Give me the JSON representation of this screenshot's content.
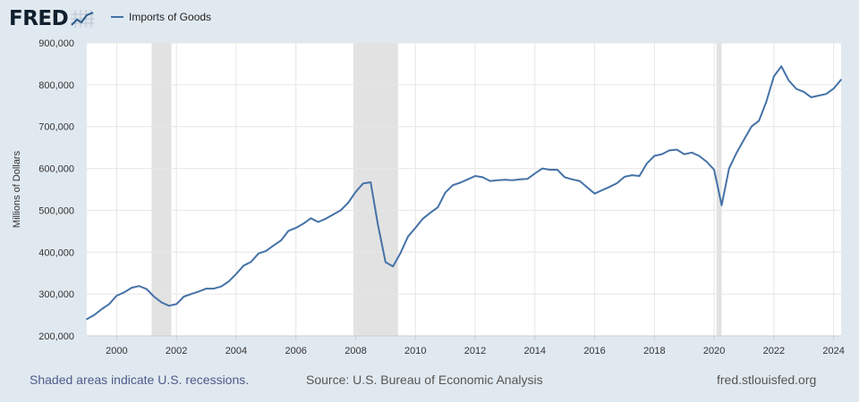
{
  "header": {
    "logo_text": "FRED",
    "logo_icon": "line-graph-icon",
    "legend_label": "Imports of Goods",
    "series_color": "#4572a7"
  },
  "footer": {
    "recession_note": "Shaded areas indicate U.S. recessions.",
    "source": "Source: U.S. Bureau of Economic Analysis",
    "site": "fred.stlouisfed.org"
  },
  "chart_data": {
    "type": "line",
    "title": "",
    "xlabel": "",
    "ylabel": "Millions of Dollars",
    "ylim": [
      200000,
      900000
    ],
    "xlim": [
      1999.0,
      2024.25
    ],
    "y_ticks": [
      200000,
      300000,
      400000,
      500000,
      600000,
      700000,
      800000,
      900000
    ],
    "y_tick_labels": [
      "200,000",
      "300,000",
      "400,000",
      "500,000",
      "600,000",
      "700,000",
      "800,000",
      "900,000"
    ],
    "x_ticks": [
      2000,
      2002,
      2004,
      2006,
      2008,
      2010,
      2012,
      2014,
      2016,
      2018,
      2020,
      2022,
      2024
    ],
    "x_tick_labels": [
      "2000",
      "2002",
      "2004",
      "2006",
      "2008",
      "2010",
      "2012",
      "2014",
      "2016",
      "2018",
      "2020",
      "2022",
      "2024"
    ],
    "grid": true,
    "recessions": [
      [
        2001.17,
        2001.83
      ],
      [
        2007.92,
        2009.42
      ],
      [
        2020.08,
        2020.25
      ]
    ],
    "series": [
      {
        "name": "Imports of Goods",
        "color": "#4572a7",
        "points": [
          [
            1999.0,
            240000
          ],
          [
            1999.25,
            250000
          ],
          [
            1999.5,
            264000
          ],
          [
            1999.75,
            276000
          ],
          [
            2000.0,
            296000
          ],
          [
            2000.25,
            304000
          ],
          [
            2000.5,
            315000
          ],
          [
            2000.75,
            319000
          ],
          [
            2001.0,
            312000
          ],
          [
            2001.25,
            294000
          ],
          [
            2001.5,
            280000
          ],
          [
            2001.75,
            272000
          ],
          [
            2002.0,
            276000
          ],
          [
            2002.25,
            294000
          ],
          [
            2002.5,
            300000
          ],
          [
            2002.75,
            306000
          ],
          [
            2003.0,
            313000
          ],
          [
            2003.25,
            313000
          ],
          [
            2003.5,
            318000
          ],
          [
            2003.75,
            330000
          ],
          [
            2004.0,
            348000
          ],
          [
            2004.25,
            368000
          ],
          [
            2004.5,
            377000
          ],
          [
            2004.75,
            397000
          ],
          [
            2005.0,
            403000
          ],
          [
            2005.25,
            416000
          ],
          [
            2005.5,
            428000
          ],
          [
            2005.75,
            451000
          ],
          [
            2006.0,
            458000
          ],
          [
            2006.25,
            468000
          ],
          [
            2006.5,
            481000
          ],
          [
            2006.75,
            472000
          ],
          [
            2007.0,
            480000
          ],
          [
            2007.25,
            490000
          ],
          [
            2007.5,
            500000
          ],
          [
            2007.75,
            518000
          ],
          [
            2008.0,
            544000
          ],
          [
            2008.25,
            564000
          ],
          [
            2008.5,
            567000
          ],
          [
            2008.75,
            464000
          ],
          [
            2009.0,
            376000
          ],
          [
            2009.25,
            366000
          ],
          [
            2009.5,
            398000
          ],
          [
            2009.75,
            437000
          ],
          [
            2010.0,
            458000
          ],
          [
            2010.25,
            480000
          ],
          [
            2010.5,
            494000
          ],
          [
            2010.75,
            507000
          ],
          [
            2011.0,
            542000
          ],
          [
            2011.25,
            560000
          ],
          [
            2011.5,
            566000
          ],
          [
            2011.75,
            574000
          ],
          [
            2012.0,
            582000
          ],
          [
            2012.25,
            579000
          ],
          [
            2012.5,
            570000
          ],
          [
            2012.75,
            572000
          ],
          [
            2013.0,
            573000
          ],
          [
            2013.25,
            572000
          ],
          [
            2013.5,
            574000
          ],
          [
            2013.75,
            575000
          ],
          [
            2014.0,
            588000
          ],
          [
            2014.25,
            600000
          ],
          [
            2014.5,
            597000
          ],
          [
            2014.75,
            597000
          ],
          [
            2015.0,
            579000
          ],
          [
            2015.25,
            574000
          ],
          [
            2015.5,
            570000
          ],
          [
            2015.75,
            555000
          ],
          [
            2016.0,
            540000
          ],
          [
            2016.25,
            548000
          ],
          [
            2016.5,
            556000
          ],
          [
            2016.75,
            565000
          ],
          [
            2017.0,
            580000
          ],
          [
            2017.25,
            584000
          ],
          [
            2017.5,
            582000
          ],
          [
            2017.75,
            612000
          ],
          [
            2018.0,
            630000
          ],
          [
            2018.25,
            634000
          ],
          [
            2018.5,
            643000
          ],
          [
            2018.75,
            645000
          ],
          [
            2019.0,
            634000
          ],
          [
            2019.25,
            638000
          ],
          [
            2019.5,
            630000
          ],
          [
            2019.75,
            616000
          ],
          [
            2020.0,
            597000
          ],
          [
            2020.25,
            512000
          ],
          [
            2020.5,
            600000
          ],
          [
            2020.75,
            637000
          ],
          [
            2021.0,
            669000
          ],
          [
            2021.25,
            700000
          ],
          [
            2021.5,
            714000
          ],
          [
            2021.75,
            760000
          ],
          [
            2022.0,
            820000
          ],
          [
            2022.25,
            844000
          ],
          [
            2022.5,
            810000
          ],
          [
            2022.75,
            790000
          ],
          [
            2023.0,
            783000
          ],
          [
            2023.25,
            770000
          ],
          [
            2023.5,
            774000
          ],
          [
            2023.75,
            778000
          ],
          [
            2024.0,
            791000
          ],
          [
            2024.25,
            812000
          ]
        ]
      }
    ]
  }
}
